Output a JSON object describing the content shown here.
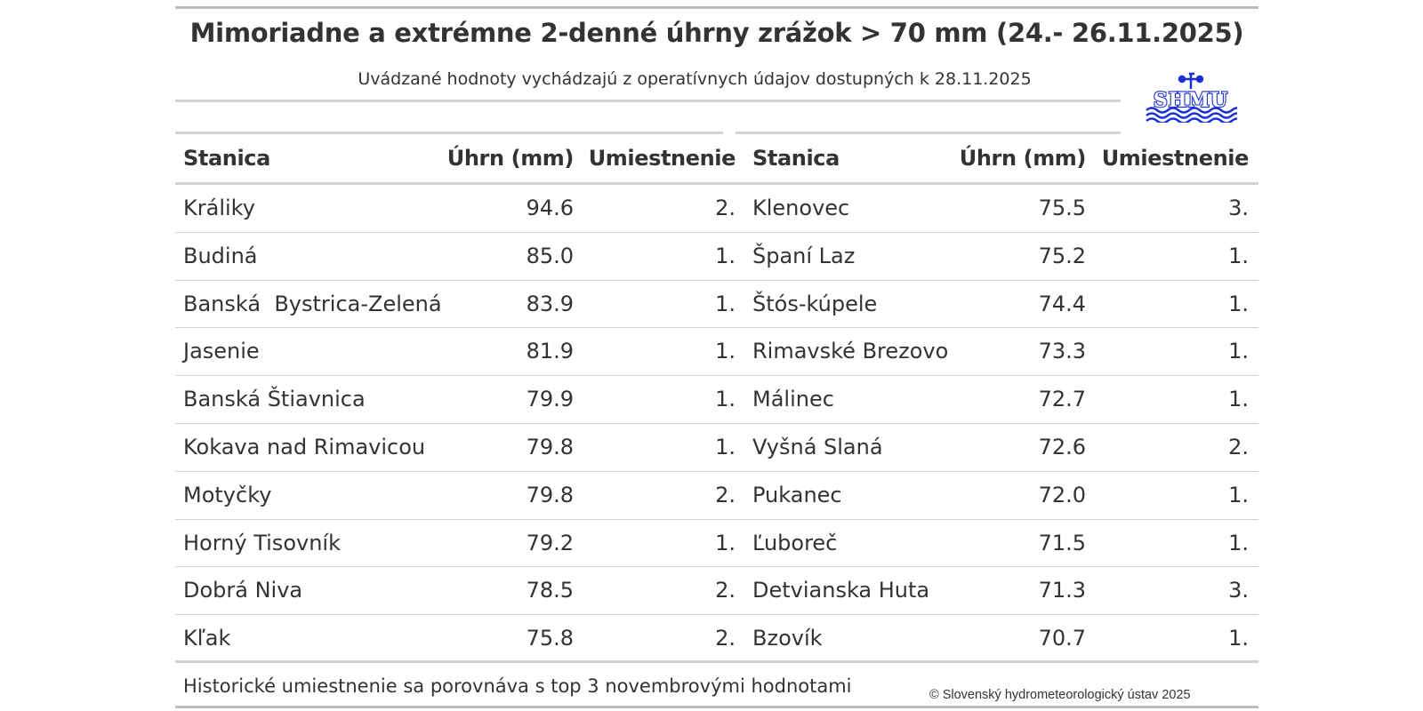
{
  "title": "Mimoriadne a extrémne 2-denné úhrny zrážok > 70 mm (24.- 26.11.2025)",
  "subtitle": "Uvádzané hodnoty vychádzajú z operatívnych údajov dostupných k 28.11.2025",
  "logo_text": "SHMU",
  "columns": {
    "station": "Stanica",
    "total": "Úhrn (mm)",
    "rank": "Umiestnenie"
  },
  "rows": [
    {
      "left": {
        "station": "Králiky",
        "total": "94.6",
        "rank": "2."
      },
      "right": {
        "station": "Klenovec",
        "total": "75.5",
        "rank": "3."
      }
    },
    {
      "left": {
        "station": "Budiná",
        "total": "85.0",
        "rank": "1."
      },
      "right": {
        "station": "Španí Laz",
        "total": "75.2",
        "rank": "1."
      }
    },
    {
      "left": {
        "station": "Banská  Bystrica-Zelená",
        "total": "83.9",
        "rank": "1."
      },
      "right": {
        "station": "Štós-kúpele",
        "total": "74.4",
        "rank": "1."
      }
    },
    {
      "left": {
        "station": "Jasenie",
        "total": "81.9",
        "rank": "1."
      },
      "right": {
        "station": "Rimavské Brezovo",
        "total": "73.3",
        "rank": "1."
      }
    },
    {
      "left": {
        "station": "Banská Štiavnica",
        "total": "79.9",
        "rank": "1."
      },
      "right": {
        "station": "Málinec",
        "total": "72.7",
        "rank": "1."
      }
    },
    {
      "left": {
        "station": "Kokava nad Rimavicou",
        "total": "79.8",
        "rank": "1."
      },
      "right": {
        "station": "Vyšná Slaná",
        "total": "72.6",
        "rank": "2."
      }
    },
    {
      "left": {
        "station": "Motyčky",
        "total": "79.8",
        "rank": "2."
      },
      "right": {
        "station": "Pukanec",
        "total": "72.0",
        "rank": "1."
      }
    },
    {
      "left": {
        "station": "Horný Tisovník",
        "total": "79.2",
        "rank": "1."
      },
      "right": {
        "station": "Ľuboreč",
        "total": "71.5",
        "rank": "1."
      }
    },
    {
      "left": {
        "station": "Dobrá Niva",
        "total": "78.5",
        "rank": "2."
      },
      "right": {
        "station": "Detvianska Huta",
        "total": "71.3",
        "rank": "3."
      }
    },
    {
      "left": {
        "station": "Kľak",
        "total": "75.8",
        "rank": "2."
      },
      "right": {
        "station": "Bzovík",
        "total": "70.7",
        "rank": "1."
      }
    }
  ],
  "footnote": "Historické umiestnenie sa porovnáva s top 3 novembrovými hodnotami",
  "copyright": "© Slovenský hydrometeorologický ústav 2025",
  "colors": {
    "text": "#333333",
    "rule": "#d3d3d3",
    "rule_outer": "#bdbdbd",
    "logo": "#1a2fd4"
  }
}
